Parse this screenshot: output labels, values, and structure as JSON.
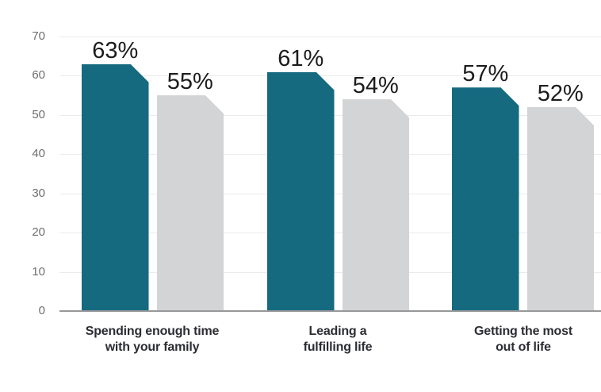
{
  "chart_data": {
    "type": "bar",
    "title": "",
    "xlabel": "",
    "ylabel": "",
    "categories": [
      "Spending enough time with your family",
      "Leading a fulfilling life",
      "Getting the most out of life"
    ],
    "category_lines": [
      [
        "Spending enough time",
        "with your family"
      ],
      [
        "Leading a",
        "fulfilling life"
      ],
      [
        "Getting the most",
        "out of life"
      ]
    ],
    "series": [
      {
        "name": "series-teal",
        "color": "#156a80",
        "values": [
          63,
          61,
          57
        ],
        "labels": [
          "63%",
          "61%",
          "57%"
        ]
      },
      {
        "name": "series-gray",
        "color": "#d2d4d5",
        "values": [
          55,
          54,
          52
        ],
        "labels": [
          "55%",
          "54%",
          "52%"
        ]
      }
    ],
    "ylim": [
      0,
      70
    ],
    "yticks": [
      0,
      10,
      20,
      30,
      40,
      50,
      60,
      70
    ],
    "grid": true,
    "legend": "none",
    "colors": {
      "gridline": "#ebebeb",
      "axis_line": "#97989a",
      "tick_text": "#6d6e71",
      "value_text": "#1c1c1c",
      "category_text": "#2c2d33",
      "background": "#ffffff"
    }
  }
}
